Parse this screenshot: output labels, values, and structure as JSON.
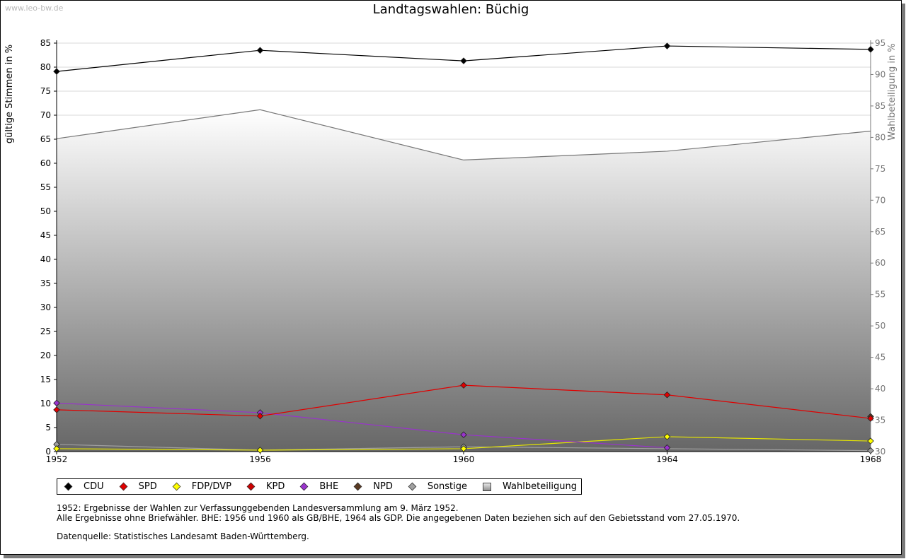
{
  "watermark": "www.leo-bw.de",
  "notes": {
    "line1": "1952: Ergebnisse der Wahlen zur Verfassunggebenden Landesversammlung am 9. März 1952.",
    "line2": "Alle Ergebnisse ohne Briefwähler. BHE: 1956 und 1960 als GB/BHE, 1964 als GDP. Die angegebenen Daten beziehen sich auf den Gebietsstand vom 27.05.1970.",
    "source": "Datenquelle: Statistisches Landesamt Baden-Württemberg."
  },
  "chart_data": {
    "type": "line",
    "title": "Landtagswahlen: Büchig",
    "ylabel": "gültige Stimmen in %",
    "y2label": "Wahlbeteiligung in %",
    "x": [
      1952,
      1956,
      1960,
      1964,
      1968
    ],
    "x_ticks": [
      "1952",
      "1956",
      "1960",
      "1964",
      "1968"
    ],
    "ylim": [
      0,
      85
    ],
    "y_ticks": [
      "0",
      "5",
      "10",
      "15",
      "20",
      "25",
      "30",
      "35",
      "40",
      "45",
      "50",
      "55",
      "60",
      "65",
      "70",
      "75",
      "80",
      "85"
    ],
    "y2lim": [
      30,
      95
    ],
    "y2_ticks": [
      "30",
      "35",
      "40",
      "45",
      "50",
      "55",
      "60",
      "65",
      "70",
      "75",
      "80",
      "85",
      "90",
      "95"
    ],
    "grid": true,
    "legend_position": "bottom",
    "series": [
      {
        "name": "CDU",
        "color": "#000000",
        "values": [
          79.1,
          83.5,
          81.3,
          84.4,
          83.7
        ]
      },
      {
        "name": "SPD",
        "color": "#e00000",
        "values": [
          8.7,
          7.4,
          13.8,
          11.8,
          6.9
        ]
      },
      {
        "name": "FDP/DVP",
        "color": "#ffff00",
        "values": [
          0.6,
          0.3,
          0.6,
          3.1,
          2.2
        ]
      },
      {
        "name": "KPD",
        "color": "#cc0000",
        "values": [
          null,
          null,
          null,
          null,
          null
        ]
      },
      {
        "name": "BHE",
        "color": "#9933cc",
        "values": [
          10.1,
          8.1,
          3.5,
          0.8,
          null
        ]
      },
      {
        "name": "NPD",
        "color": "#5a3a22",
        "values": [
          null,
          null,
          null,
          null,
          7.3
        ]
      },
      {
        "name": "Sonstige",
        "color": "#a0a0a0",
        "values": [
          1.5,
          0.3,
          1.0,
          null,
          0.2
        ]
      }
    ],
    "turnout": {
      "name": "Wahlbeteiligung",
      "color": "#777777",
      "axis": "right",
      "values": [
        79.8,
        84.4,
        76.4,
        77.8,
        81.0
      ]
    }
  }
}
